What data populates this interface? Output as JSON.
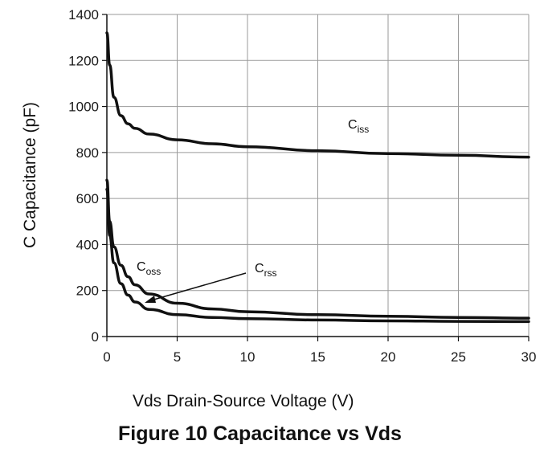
{
  "chart_data": {
    "type": "line",
    "title": "Figure 10 Capacitance vs Vds",
    "xlabel": "Vds Drain-Source Voltage (V)",
    "ylabel": "C Capacitance (pF)",
    "xlim": [
      0,
      30
    ],
    "ylim": [
      0,
      1400
    ],
    "xticks": [
      0,
      5,
      10,
      15,
      20,
      25,
      30
    ],
    "yticks": [
      0,
      200,
      400,
      600,
      800,
      1000,
      1200,
      1400
    ],
    "grid": true,
    "series": [
      {
        "name": "Ciss",
        "label_main": "C",
        "label_sub": "iss",
        "x": [
          0,
          0.2,
          0.5,
          1,
          1.5,
          2,
          3,
          5,
          7.5,
          10,
          15,
          20,
          25,
          30
        ],
        "y": [
          1320,
          1180,
          1040,
          960,
          925,
          905,
          880,
          855,
          838,
          825,
          808,
          795,
          788,
          780
        ]
      },
      {
        "name": "Coss",
        "label_main": "C",
        "label_sub": "oss",
        "x": [
          0,
          0.2,
          0.5,
          1,
          1.5,
          2,
          3,
          5,
          7.5,
          10,
          15,
          20,
          25,
          30
        ],
        "y": [
          680,
          500,
          390,
          310,
          260,
          225,
          185,
          145,
          120,
          108,
          95,
          88,
          83,
          80
        ]
      },
      {
        "name": "Crss",
        "label_main": "C",
        "label_sub": "rss",
        "x": [
          0,
          0.2,
          0.5,
          1,
          1.5,
          2,
          3,
          5,
          7.5,
          10,
          15,
          20,
          25,
          30
        ],
        "y": [
          640,
          440,
          320,
          230,
          180,
          150,
          118,
          95,
          83,
          78,
          72,
          68,
          66,
          65
        ]
      }
    ]
  }
}
